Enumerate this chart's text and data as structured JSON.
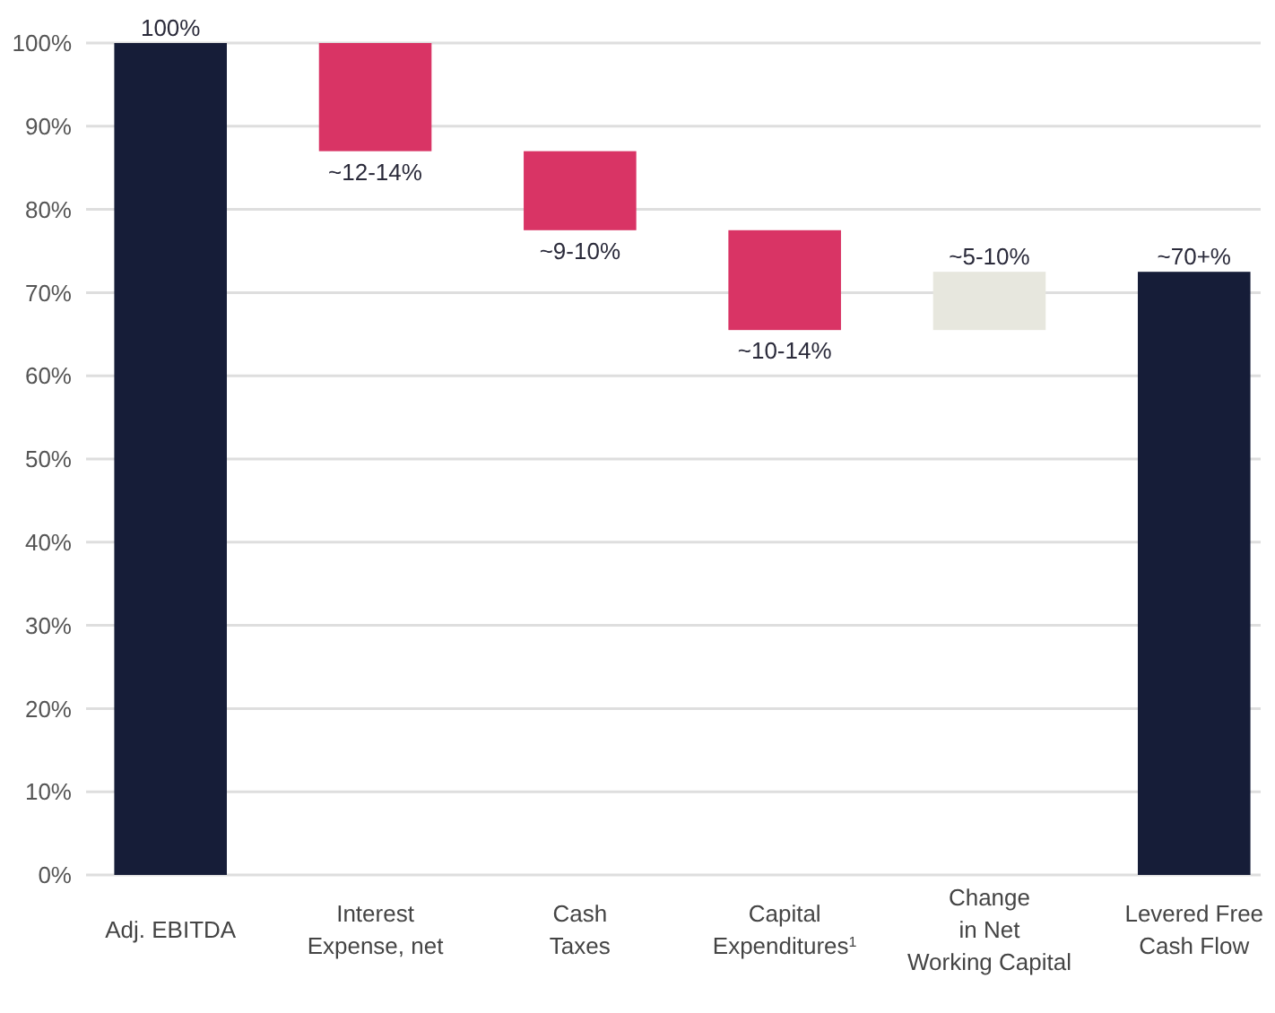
{
  "chart_data": {
    "type": "bar",
    "categories": [
      "Adj. EBITDA",
      "Interest\nExpense, net",
      "Cash\nTaxes",
      "Capital\nExpenditures$^{1}$",
      "Change\nin Net\nWorking Capital",
      "Levered Free\nCash Flow"
    ],
    "values": [
      100,
      -13,
      -9.5,
      -12,
      7,
      72.5
    ],
    "base": [
      0,
      100,
      87,
      77.5,
      65.5,
      0
    ],
    "colors": [
      "#161d38",
      "#d93465",
      "#d93465",
      "#d93465",
      "#e7e7de",
      "#161d38"
    ],
    "annotations": [
      {
        "text": "100%",
        "x": "Adj. EBITDA",
        "y": 100
      },
      {
        "text": "~12-14%",
        "x": "Interest\nExpense, net",
        "y": 87
      },
      {
        "text": "~9-10%",
        "x": "Cash\nTaxes",
        "y": 77.5
      },
      {
        "text": "~10-14%",
        "x": "Capital\nExpenditures$^{1}$",
        "y": 65.5
      },
      {
        "text": "~5-10%",
        "x": "Change\nin Net\nWorking Capital",
        "y": 72.5
      },
      {
        "text": "~70+%",
        "x": "Levered Free\nCash Flow",
        "y": 72.5
      }
    ],
    "ylim": [
      0,
      100
    ],
    "yticks": [
      {
        "value": 0,
        "label": "0%"
      },
      {
        "value": 10,
        "label": "10%"
      },
      {
        "value": 20,
        "label": "20%"
      },
      {
        "value": 30,
        "label": "30%"
      },
      {
        "value": 40,
        "label": "40%"
      },
      {
        "value": 50,
        "label": "50%"
      },
      {
        "value": 60,
        "label": "60%"
      },
      {
        "value": 70,
        "label": "70%"
      },
      {
        "value": 80,
        "label": "80%"
      },
      {
        "value": 90,
        "label": "90%"
      },
      {
        "value": 100,
        "label": "100%"
      }
    ],
    "grid": "y"
  }
}
